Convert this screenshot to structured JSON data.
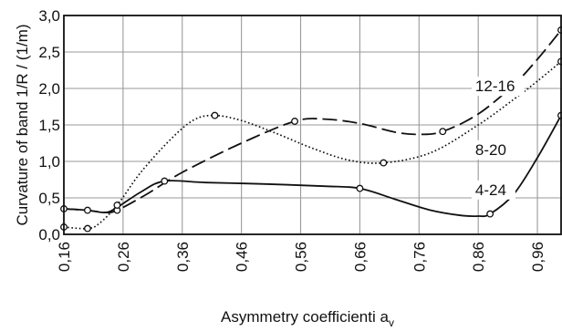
{
  "chart_data": {
    "type": "line",
    "xlabel": "Asymmetry coefficienti a",
    "xlabel_subscript": "v",
    "ylabel": "Curvature of band 1/R / (1/m)",
    "xlim": [
      0.16,
      1.0
    ],
    "ylim": [
      0.0,
      3.0
    ],
    "x_ticks": [
      "0,16",
      "0,26",
      "0,36",
      "0,46",
      "0,56",
      "0,66",
      "0,76",
      "0,86",
      "0,96"
    ],
    "x_tick_values": [
      0.16,
      0.26,
      0.36,
      0.46,
      0.56,
      0.66,
      0.76,
      0.86,
      0.96
    ],
    "y_ticks": [
      "0,0",
      "0,5",
      "1,0",
      "1,5",
      "2,0",
      "2,5",
      "3,0"
    ],
    "y_tick_values": [
      0.0,
      0.5,
      1.0,
      1.5,
      2.0,
      2.5,
      3.0
    ],
    "grid": "vertical at ticks, horizontal at each 0.5",
    "series": [
      {
        "name": "12-16",
        "style": "dashed",
        "x": [
          0.16,
          0.2,
          0.23,
          0.25,
          0.3,
          0.36,
          0.46,
          0.55,
          0.6,
          0.66,
          0.72,
          0.76,
          0.8,
          0.86,
          0.92,
          0.96,
          1.0
        ],
        "y": [
          0.35,
          0.33,
          0.3,
          0.33,
          0.55,
          0.85,
          1.25,
          1.55,
          1.58,
          1.52,
          1.4,
          1.37,
          1.41,
          1.65,
          2.05,
          2.4,
          2.8
        ],
        "markers": [
          [
            0.25,
            0.33
          ],
          [
            0.55,
            1.55
          ],
          [
            0.8,
            1.41
          ],
          [
            1.0,
            2.8
          ]
        ]
      },
      {
        "name": "8-20",
        "style": "dotted",
        "x": [
          0.16,
          0.2,
          0.22,
          0.25,
          0.29,
          0.34,
          0.38,
          0.415,
          0.46,
          0.52,
          0.58,
          0.64,
          0.7,
          0.78,
          0.86,
          0.92,
          0.96,
          1.0
        ],
        "y": [
          0.1,
          0.08,
          0.15,
          0.4,
          0.85,
          1.3,
          1.57,
          1.63,
          1.56,
          1.38,
          1.18,
          1.02,
          0.98,
          1.12,
          1.5,
          1.85,
          2.1,
          2.37
        ],
        "markers": [
          [
            0.16,
            0.1
          ],
          [
            0.2,
            0.08
          ],
          [
            0.25,
            0.4
          ],
          [
            0.415,
            1.63
          ],
          [
            0.7,
            0.98
          ],
          [
            1.0,
            2.37
          ]
        ]
      },
      {
        "name": "4-24",
        "style": "solid",
        "x": [
          0.16,
          0.2,
          0.23,
          0.25,
          0.29,
          0.33,
          0.4,
          0.5,
          0.6,
          0.66,
          0.72,
          0.78,
          0.83,
          0.86,
          0.88,
          0.92,
          0.96,
          1.0
        ],
        "y": [
          0.35,
          0.33,
          0.3,
          0.37,
          0.58,
          0.73,
          0.71,
          0.69,
          0.66,
          0.63,
          0.48,
          0.33,
          0.26,
          0.25,
          0.28,
          0.55,
          1.05,
          1.63
        ],
        "markers": [
          [
            0.16,
            0.35
          ],
          [
            0.2,
            0.33
          ],
          [
            0.33,
            0.73
          ],
          [
            0.66,
            0.63
          ],
          [
            0.88,
            0.28
          ],
          [
            1.0,
            1.63
          ]
        ]
      }
    ],
    "series_labels": [
      {
        "text": "12-16",
        "x": 0.855,
        "y": 1.96
      },
      {
        "text": "8-20",
        "x": 0.855,
        "y": 1.09
      },
      {
        "text": "4-24",
        "x": 0.855,
        "y": 0.54
      }
    ]
  }
}
